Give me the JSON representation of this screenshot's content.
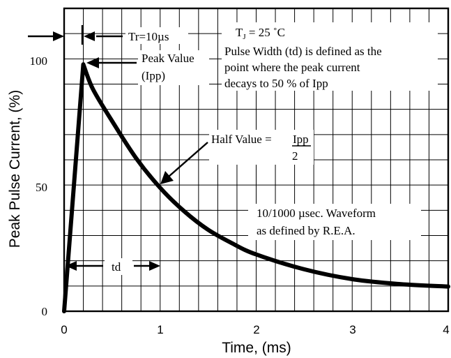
{
  "chart_data": {
    "type": "line",
    "title": "",
    "xlabel": "Time, (ms)",
    "ylabel": "Peak Pulse Current, (%)",
    "xlim": [
      0,
      4
    ],
    "ylim": [
      0,
      100
    ],
    "x_ticks": [
      "0",
      "1",
      "2",
      "3",
      "4"
    ],
    "y_ticks": [
      "0",
      "50",
      "100"
    ],
    "grid": true,
    "series": [
      {
        "x": [
          0.0,
          0.2,
          0.3,
          0.5,
          0.75,
          1.0,
          1.25,
          1.5,
          1.75,
          2.0,
          2.5,
          3.0,
          3.5,
          4.0
        ],
        "y": [
          0.0,
          100.0,
          90.0,
          77.0,
          62.0,
          50.0,
          40.5,
          33.0,
          27.5,
          23.0,
          17.0,
          13.0,
          11.0,
          10.0
        ]
      }
    ],
    "annotations": {
      "tr": "Tr=10µs",
      "peak_value": "Peak Value",
      "ipp": "(Ipp)",
      "tj_label": "T",
      "tj_sub": "J",
      "tj_value": " = 25 ˚C",
      "pulse_width_lines": [
        "Pulse Width (td) is defined as the",
        "point where the peak current",
        "decays to 50 % of Ipp"
      ],
      "half_value": "Half Value = ",
      "half_num": "Ipp",
      "half_den": "2",
      "waveform_lines": [
        "10/1000 µsec. Waveform",
        "as defined by R.E.A."
      ],
      "td": "td"
    }
  }
}
